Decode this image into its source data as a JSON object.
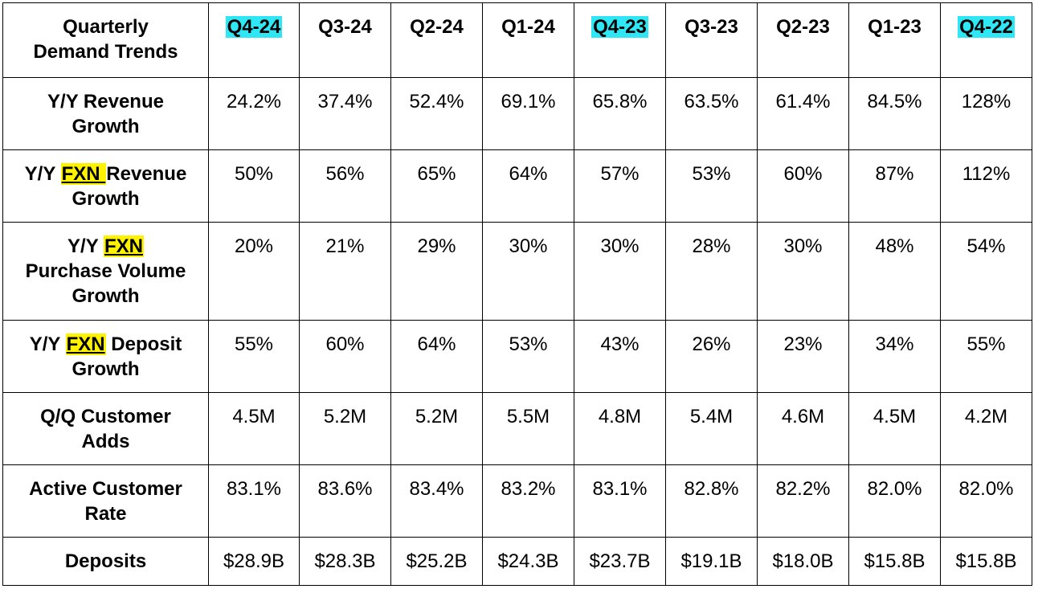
{
  "table": {
    "corner_label_line1": "Quarterly",
    "corner_label_line2": "Demand Trends",
    "columns": [
      {
        "label": "Q4-24",
        "highlight": "#2fe7f4"
      },
      {
        "label": "Q3-24",
        "highlight": ""
      },
      {
        "label": "Q2-24",
        "highlight": ""
      },
      {
        "label": "Q1-24",
        "highlight": ""
      },
      {
        "label": "Q4-23",
        "highlight": "#2fe7f4"
      },
      {
        "label": "Q3-23",
        "highlight": ""
      },
      {
        "label": "Q2-23",
        "highlight": ""
      },
      {
        "label": "Q1-23",
        "highlight": ""
      },
      {
        "label": "Q4-22",
        "highlight": "#2fe7f4"
      }
    ],
    "rows": [
      {
        "label_parts": [
          "Y/Y Revenue",
          "Growth"
        ],
        "values": [
          "24.2%",
          "37.4%",
          "52.4%",
          "69.1%",
          "65.8%",
          "63.5%",
          "61.4%",
          "84.5%",
          "128%"
        ]
      },
      {
        "label_parts": [
          "Y/Y ",
          "FXN ",
          "Revenue",
          "Growth"
        ],
        "values": [
          "50%",
          "56%",
          "65%",
          "64%",
          "57%",
          "53%",
          "60%",
          "87%",
          "112%"
        ]
      },
      {
        "label_parts": [
          "Y/Y ",
          "FXN",
          "Purchase Volume",
          "Growth"
        ],
        "values": [
          "20%",
          "21%",
          "29%",
          "30%",
          "30%",
          "28%",
          "30%",
          "48%",
          "54%"
        ]
      },
      {
        "label_parts": [
          "Y/Y ",
          "FXN",
          " Deposit",
          "Growth"
        ],
        "values": [
          "55%",
          "60%",
          "64%",
          "53%",
          "43%",
          "26%",
          "23%",
          "34%",
          "55%"
        ]
      },
      {
        "label_parts": [
          "Q/Q Customer",
          "Adds"
        ],
        "values": [
          "4.5M",
          "5.2M",
          "5.2M",
          "5.5M",
          "4.8M",
          "5.4M",
          "4.6M",
          "4.5M",
          "4.2M"
        ]
      },
      {
        "label_parts": [
          "Active Customer",
          "Rate"
        ],
        "values": [
          "83.1%",
          "83.6%",
          "83.4%",
          "83.2%",
          "83.1%",
          "82.8%",
          "82.2%",
          "82.0%",
          "82.0%"
        ]
      },
      {
        "label_parts": [
          "Deposits"
        ],
        "values": [
          "$28.9B",
          "$28.3B",
          "$25.2B",
          "$24.3B",
          "$23.7B",
          "$19.1B",
          "$18.0B",
          "$15.8B",
          "$15.8B"
        ]
      }
    ],
    "highlight_colors": {
      "quarter": "#2fe7f4",
      "fxn": "#fff200"
    }
  }
}
